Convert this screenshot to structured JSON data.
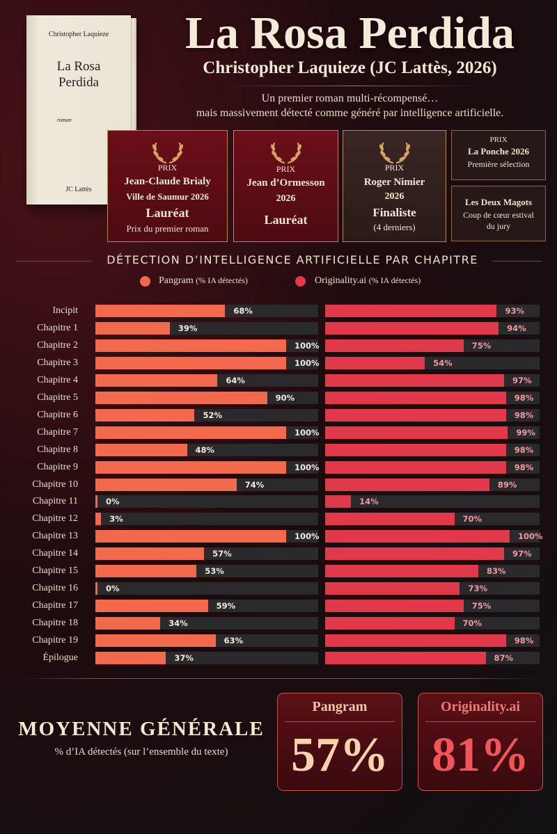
{
  "book": {
    "author": "Christopher Laquieze",
    "title": "La Rosa\nPerdida",
    "genre": "roman",
    "publisher": "JC Lattès"
  },
  "header": {
    "title": "La Rosa Perdida",
    "subtitle": "Christopher Laquieze (JC Lattès, 2026)",
    "tagline_line1": "Un premier roman multi-récompensé…",
    "tagline_line2": "mais massivement détecté comme généré par intelligence artificielle."
  },
  "prizes": [
    {
      "label": "PRIX",
      "name": "Jean-Claude Brialy",
      "detail": "Ville de Saumur 2026",
      "result": "Lauréat",
      "note": "Prix du premier roman"
    },
    {
      "label": "PRIX",
      "name": "Jean d’Ormesson",
      "detail": "2026",
      "result": "Lauréat"
    },
    {
      "label": "PRIX",
      "name": "Roger Nimier",
      "detail": "2026",
      "result": "Finaliste",
      "note": "(4 derniers)"
    }
  ],
  "small_prizes": [
    {
      "label": "PRIX",
      "name": "La Ponche 2026",
      "detail": "Première sélection"
    },
    {
      "name": "Les Deux Magots",
      "detail_line1": "Coup de cœur estival",
      "detail_line2": "du jury"
    }
  ],
  "colors": {
    "pangram": "#f2694c",
    "originality": "#e2394a",
    "track": "#2a2a2d"
  },
  "chart_data": {
    "type": "bar",
    "title": "DÉTECTION D’INTELLIGENCE ARTIFICIELLE PAR CHAPITRE",
    "ylim": [
      0,
      100
    ],
    "legend": [
      {
        "name": "Pangram",
        "unit": "(% IA détectés)"
      },
      {
        "name": "Originality.ai",
        "unit": "(% IA détectés)"
      }
    ],
    "categories": [
      "Incipit",
      "Chapitre 1",
      "Chapitre 2",
      "Chapitre 3",
      "Chapitre 4",
      "Chapitre 5",
      "Chapitre 6",
      "Chapitre 7",
      "Chapitre 8",
      "Chapitre 9",
      "Chapitre 10",
      "Chapitre 11",
      "Chapitre 12",
      "Chapitre 13",
      "Chapitre 14",
      "Chapitre 15",
      "Chapitre 16",
      "Chapitre 17",
      "Chapitre 18",
      "Chapitre 19",
      "Épilogue"
    ],
    "series": [
      {
        "name": "Pangram",
        "values": [
          68,
          39,
          100,
          100,
          64,
          90,
          52,
          100,
          48,
          100,
          74,
          0,
          3,
          100,
          57,
          53,
          0,
          59,
          34,
          63,
          37
        ]
      },
      {
        "name": "Originality.ai",
        "values": [
          93,
          94,
          75,
          54,
          97,
          98,
          98,
          99,
          98,
          98,
          89,
          14,
          70,
          100,
          97,
          83,
          73,
          75,
          70,
          98,
          87
        ]
      }
    ]
  },
  "summary": {
    "title": "MOYENNE GÉNÉRALE",
    "subtitle": "% d’IA détectés (sur l’ensemble du texte)",
    "pangram_label": "Pangram",
    "pangram_value": "57%",
    "originality_label": "Originality.ai",
    "originality_value": "81%"
  }
}
